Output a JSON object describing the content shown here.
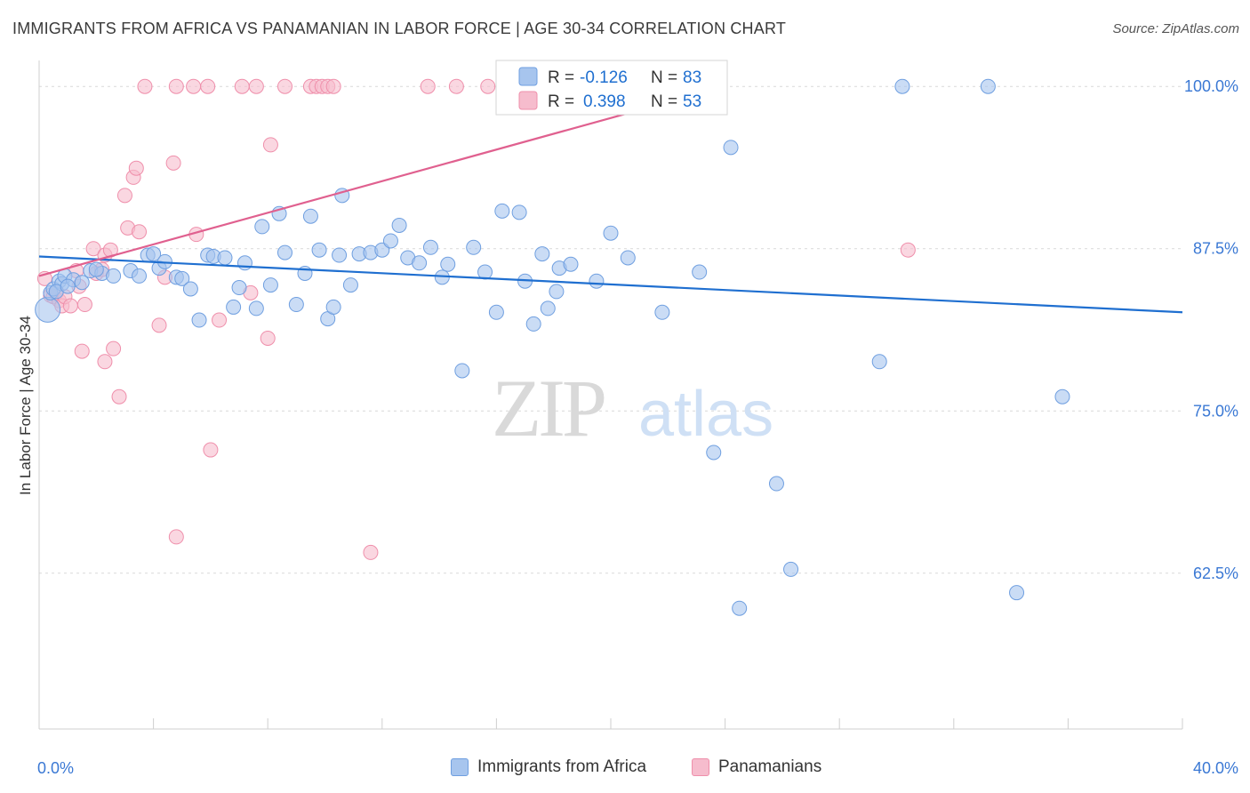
{
  "title": "IMMIGRANTS FROM AFRICA VS PANAMANIAN IN LABOR FORCE | AGE 30-34 CORRELATION CHART",
  "source": "Source: ZipAtlas.com",
  "watermark": {
    "zip": "ZIP",
    "atlas": "atlas"
  },
  "colors": {
    "blue_fill": "#a7c5ee",
    "blue_stroke": "#6f9fe0",
    "blue_line": "#1f6fd0",
    "pink_fill": "#f6bccd",
    "pink_stroke": "#ef8fab",
    "pink_line": "#e0608f",
    "tick_label": "#3a78d4",
    "grid": "#d9d9d9"
  },
  "stats_legend": [
    {
      "r_label": "R =",
      "r_value": "-0.126",
      "n_label": "N =",
      "n_value": "83"
    },
    {
      "r_label": "R =",
      "r_value": "0.398",
      "n_label": "N =",
      "n_value": "53"
    }
  ],
  "bottom_legend": [
    "Immigrants from Africa",
    "Panamanians"
  ],
  "chart_data": {
    "type": "scatter",
    "title": "IMMIGRANTS FROM AFRICA VS PANAMANIAN IN LABOR FORCE | AGE 30-34 CORRELATION CHART",
    "xlabel": "",
    "ylabel": "In Labor Force | Age 30-34",
    "xlim": [
      0,
      40
    ],
    "ylim": [
      50.5,
      102
    ],
    "x_tick_labels": [
      {
        "value": 0,
        "label": "0.0%"
      },
      {
        "value": 40,
        "label": "40.0%"
      }
    ],
    "x_minor_ticks": [
      0,
      4,
      8,
      12,
      16,
      20,
      24,
      28,
      32,
      36,
      40
    ],
    "y_ticks": [
      {
        "value": 100,
        "label": "100.0%"
      },
      {
        "value": 87.5,
        "label": "87.5%"
      },
      {
        "value": 75,
        "label": "75.0%"
      },
      {
        "value": 62.5,
        "label": "62.5%"
      }
    ],
    "grid": true,
    "legend_position": "top-center",
    "series": [
      {
        "name": "Immigrants from Africa",
        "r": -0.126,
        "n": 83,
        "trend": {
          "x": [
            0,
            40
          ],
          "y": [
            86.9,
            82.6
          ]
        },
        "points": [
          [
            0.3,
            82.8
          ],
          [
            0.4,
            84.1
          ],
          [
            0.5,
            84.4
          ],
          [
            0.7,
            85.0
          ],
          [
            0.8,
            84.8
          ],
          [
            0.9,
            85.4
          ],
          [
            1.2,
            85.1
          ],
          [
            1.5,
            84.9
          ],
          [
            1.8,
            85.8
          ],
          [
            2.2,
            85.6
          ],
          [
            2.6,
            85.4
          ],
          [
            3.2,
            85.8
          ],
          [
            3.5,
            85.4
          ],
          [
            3.8,
            87.0
          ],
          [
            4.0,
            87.1
          ],
          [
            4.2,
            86.0
          ],
          [
            4.4,
            86.5
          ],
          [
            4.8,
            85.3
          ],
          [
            5.0,
            85.2
          ],
          [
            5.3,
            84.4
          ],
          [
            5.6,
            82.0
          ],
          [
            5.9,
            87.0
          ],
          [
            6.1,
            86.9
          ],
          [
            6.5,
            86.8
          ],
          [
            6.8,
            83.0
          ],
          [
            7.0,
            84.5
          ],
          [
            7.2,
            86.4
          ],
          [
            7.6,
            82.9
          ],
          [
            7.8,
            89.2
          ],
          [
            8.1,
            84.7
          ],
          [
            8.4,
            90.2
          ],
          [
            8.6,
            87.2
          ],
          [
            9.0,
            83.2
          ],
          [
            9.3,
            85.6
          ],
          [
            9.5,
            90.0
          ],
          [
            9.8,
            87.4
          ],
          [
            10.1,
            82.1
          ],
          [
            10.3,
            83.0
          ],
          [
            10.6,
            91.6
          ],
          [
            10.9,
            84.7
          ],
          [
            11.2,
            87.1
          ],
          [
            11.6,
            87.2
          ],
          [
            12.0,
            87.4
          ],
          [
            12.3,
            88.1
          ],
          [
            12.6,
            89.3
          ],
          [
            12.9,
            86.8
          ],
          [
            13.3,
            86.4
          ],
          [
            13.7,
            87.6
          ],
          [
            14.1,
            85.3
          ],
          [
            14.3,
            86.3
          ],
          [
            14.8,
            78.1
          ],
          [
            15.2,
            87.6
          ],
          [
            15.6,
            85.7
          ],
          [
            16.0,
            82.6
          ],
          [
            16.2,
            90.4
          ],
          [
            16.8,
            90.3
          ],
          [
            17.0,
            85.0
          ],
          [
            17.3,
            81.7
          ],
          [
            17.6,
            87.1
          ],
          [
            17.8,
            82.9
          ],
          [
            18.1,
            84.2
          ],
          [
            18.2,
            86.0
          ],
          [
            18.6,
            86.3
          ],
          [
            19.5,
            85.0
          ],
          [
            20.0,
            88.7
          ],
          [
            20.6,
            86.8
          ],
          [
            20.9,
            100.0
          ],
          [
            21.8,
            82.6
          ],
          [
            23.1,
            85.7
          ],
          [
            24.2,
            95.3
          ],
          [
            23.6,
            71.8
          ],
          [
            25.8,
            69.4
          ],
          [
            26.3,
            62.8
          ],
          [
            24.5,
            59.8
          ],
          [
            29.4,
            78.8
          ],
          [
            30.2,
            100.0
          ],
          [
            33.2,
            100.0
          ],
          [
            34.2,
            61.0
          ],
          [
            35.8,
            76.1
          ],
          [
            0.6,
            84.2
          ],
          [
            1.0,
            84.6
          ],
          [
            2.0,
            85.9
          ],
          [
            10.5,
            87.0
          ]
        ]
      },
      {
        "name": "Panamanians",
        "r": 0.398,
        "n": 53,
        "trend": {
          "x": [
            0,
            24
          ],
          "y": [
            85.4,
            100
          ]
        },
        "points": [
          [
            0.2,
            85.2
          ],
          [
            0.4,
            83.9
          ],
          [
            0.5,
            83.8
          ],
          [
            0.6,
            84.1
          ],
          [
            0.7,
            83.5
          ],
          [
            0.8,
            83.1
          ],
          [
            0.9,
            83.8
          ],
          [
            1.1,
            83.1
          ],
          [
            1.3,
            85.8
          ],
          [
            1.4,
            84.6
          ],
          [
            1.6,
            83.2
          ],
          [
            1.9,
            87.5
          ],
          [
            2.0,
            85.6
          ],
          [
            2.2,
            85.9
          ],
          [
            2.3,
            87.0
          ],
          [
            2.5,
            87.4
          ],
          [
            2.6,
            79.8
          ],
          [
            2.8,
            76.1
          ],
          [
            3.0,
            91.6
          ],
          [
            3.1,
            89.1
          ],
          [
            3.3,
            93.0
          ],
          [
            3.4,
            93.7
          ],
          [
            3.5,
            88.8
          ],
          [
            3.7,
            100.0
          ],
          [
            4.2,
            81.6
          ],
          [
            4.4,
            85.3
          ],
          [
            4.7,
            94.1
          ],
          [
            4.8,
            65.3
          ],
          [
            5.4,
            100.0
          ],
          [
            5.5,
            88.6
          ],
          [
            5.9,
            100.0
          ],
          [
            6.0,
            72.0
          ],
          [
            6.3,
            82.0
          ],
          [
            7.1,
            100.0
          ],
          [
            7.4,
            84.1
          ],
          [
            7.6,
            100.0
          ],
          [
            8.0,
            80.6
          ],
          [
            8.1,
            95.5
          ],
          [
            8.6,
            100.0
          ],
          [
            9.5,
            100.0
          ],
          [
            9.7,
            100.0
          ],
          [
            9.9,
            100.0
          ],
          [
            10.1,
            100.0
          ],
          [
            10.3,
            100.0
          ],
          [
            11.6,
            64.1
          ],
          [
            13.6,
            100.0
          ],
          [
            14.6,
            100.0
          ],
          [
            15.7,
            100.0
          ],
          [
            16.6,
            100.0
          ],
          [
            30.4,
            87.4
          ],
          [
            1.5,
            79.6
          ],
          [
            2.3,
            78.8
          ],
          [
            4.8,
            100.0
          ]
        ]
      }
    ]
  }
}
